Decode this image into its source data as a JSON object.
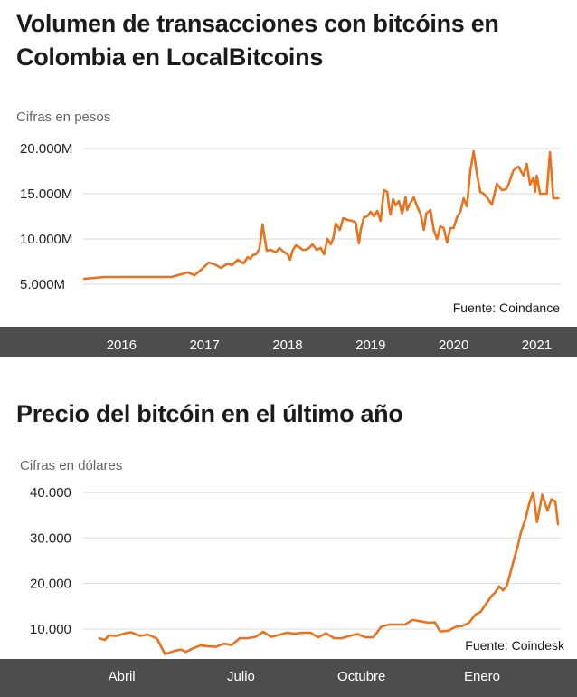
{
  "chart_data": [
    {
      "type": "line",
      "title": "Volumen de transacciones con bitcóins en Colombia en LocalBitcoins",
      "ylabel": "Cifras en pesos",
      "source": "Fuente: Coindance",
      "ylim": [
        5000,
        20000
      ],
      "xlim": [
        2015.55,
        2021.3
      ],
      "yticks": [
        {
          "value": 20000,
          "label": "20.000M"
        },
        {
          "value": 15000,
          "label": "15.000M"
        },
        {
          "value": 10000,
          "label": "10.000M"
        },
        {
          "value": 5000,
          "label": "5.000M"
        }
      ],
      "xticks": [
        {
          "value": 2016.0,
          "label": "2016"
        },
        {
          "value": 2017.0,
          "label": "2017"
        },
        {
          "value": 2018.0,
          "label": "2018"
        },
        {
          "value": 2019.0,
          "label": "2019"
        },
        {
          "value": 2020.0,
          "label": "2020"
        },
        {
          "value": 2021.0,
          "label": "2021"
        }
      ],
      "line_color": "#e8731e",
      "grid": true,
      "series": [
        {
          "values_in": "millones de pesos",
          "x": [
            2015.55,
            2015.8,
            2016.2,
            2016.6,
            2016.8,
            2016.88,
            2016.96,
            2017.05,
            2017.12,
            2017.2,
            2017.28,
            2017.33,
            2017.4,
            2017.47,
            2017.52,
            2017.55,
            2017.58,
            2017.62,
            2017.66,
            2017.7,
            2017.72,
            2017.75,
            2017.8,
            2017.86,
            2017.9,
            2017.95,
            2018.0,
            2018.03,
            2018.06,
            2018.1,
            2018.14,
            2018.18,
            2018.22,
            2018.26,
            2018.3,
            2018.35,
            2018.4,
            2018.44,
            2018.48,
            2018.52,
            2018.55,
            2018.58,
            2018.63,
            2018.67,
            2018.72,
            2018.78,
            2018.82,
            2018.86,
            2018.88,
            2018.92,
            2018.96,
            2019.0,
            2019.04,
            2019.08,
            2019.12,
            2019.16,
            2019.2,
            2019.22,
            2019.24,
            2019.27,
            2019.3,
            2019.34,
            2019.38,
            2019.42,
            2019.44,
            2019.48,
            2019.52,
            2019.56,
            2019.6,
            2019.64,
            2019.67,
            2019.72,
            2019.76,
            2019.8,
            2019.84,
            2019.88,
            2019.92,
            2019.96,
            2020.0,
            2020.04,
            2020.08,
            2020.12,
            2020.16,
            2020.2,
            2020.24,
            2020.28,
            2020.32,
            2020.36,
            2020.4,
            2020.46,
            2020.52,
            2020.58,
            2020.63,
            2020.66,
            2020.72,
            2020.78,
            2020.84,
            2020.88,
            2020.92,
            2020.96,
            2020.98,
            2021.0,
            2021.04,
            2021.08,
            2021.12,
            2021.16,
            2021.2,
            2021.23,
            2021.26
          ],
          "y": [
            5600,
            5800,
            5800,
            5800,
            6300,
            6000,
            6600,
            7400,
            7200,
            6800,
            7300,
            7100,
            7700,
            7300,
            8000,
            7800,
            8200,
            8300,
            8900,
            11600,
            10300,
            8700,
            8800,
            8500,
            9000,
            8600,
            8300,
            7700,
            8700,
            9300,
            9100,
            8800,
            8800,
            9000,
            9400,
            8800,
            9000,
            8300,
            10000,
            9400,
            10100,
            11700,
            11000,
            12300,
            12100,
            12000,
            11800,
            9500,
            11000,
            12400,
            12500,
            13000,
            12500,
            13100,
            12000,
            15400,
            15200,
            13600,
            12700,
            14400,
            13700,
            14200,
            12800,
            14600,
            13200,
            14000,
            14600,
            13600,
            12800,
            11000,
            12800,
            13200,
            11000,
            10000,
            11400,
            11200,
            9600,
            11200,
            11200,
            12400,
            13000,
            14500,
            13600,
            17500,
            19700,
            17200,
            15200,
            15000,
            14600,
            13800,
            16100,
            15400,
            15500,
            16000,
            17600,
            18000,
            17000,
            18300,
            16000,
            16800,
            15200,
            17000,
            15000,
            15000,
            15000,
            19600,
            14500,
            14500,
            14500
          ]
        }
      ]
    },
    {
      "type": "line",
      "title": "Precio del bitcóin en el último año",
      "ylabel": "Cifras en dólares",
      "source": "Fuente: Coindesk",
      "ylim": [
        10000,
        40000
      ],
      "xlim": [
        "2020-03-15",
        "2021-02-28"
      ],
      "yticks": [
        {
          "value": 40000,
          "label": "40.000"
        },
        {
          "value": 30000,
          "label": "30.000"
        },
        {
          "value": 20000,
          "label": "20.000"
        },
        {
          "value": 10000,
          "label": "10.000"
        }
      ],
      "xticks": [
        {
          "value": "2020-04-01",
          "label": "Abril"
        },
        {
          "value": "2020-07-01",
          "label": "Julio"
        },
        {
          "value": "2020-10-01",
          "label": "Octubre"
        },
        {
          "value": "2021-01-01",
          "label": "Enero"
        }
      ],
      "line_color": "#e8731e",
      "grid": true,
      "series": [
        {
          "x": [
            "2020-03-15",
            "2020-03-19",
            "2020-03-22",
            "2020-03-28",
            "2020-04-04",
            "2020-04-08",
            "2020-04-15",
            "2020-04-21",
            "2020-04-28",
            "2020-05-04",
            "2020-05-11",
            "2020-05-16",
            "2020-05-20",
            "2020-05-25",
            "2020-05-31",
            "2020-06-06",
            "2020-06-12",
            "2020-06-18",
            "2020-06-24",
            "2020-06-30",
            "2020-07-06",
            "2020-07-12",
            "2020-07-18",
            "2020-07-24",
            "2020-07-30",
            "2020-08-05",
            "2020-08-11",
            "2020-08-17",
            "2020-08-23",
            "2020-08-29",
            "2020-09-04",
            "2020-09-10",
            "2020-09-16",
            "2020-09-22",
            "2020-09-28",
            "2020-10-04",
            "2020-10-10",
            "2020-10-16",
            "2020-10-22",
            "2020-10-28",
            "2020-11-03",
            "2020-11-09",
            "2020-11-15",
            "2020-11-21",
            "2020-11-26",
            "2020-11-30",
            "2020-12-06",
            "2020-12-12",
            "2020-12-17",
            "2020-12-22",
            "2020-12-27",
            "2020-12-31",
            "2021-01-03",
            "2021-01-06",
            "2021-01-08",
            "2021-01-11",
            "2021-01-14",
            "2021-01-17",
            "2021-01-20",
            "2021-01-24",
            "2021-01-28",
            "2021-01-31",
            "2021-02-03",
            "2021-02-06",
            "2021-02-09",
            "2021-02-12",
            "2021-02-16",
            "2021-02-20",
            "2021-02-23",
            "2021-02-26",
            "2021-02-28"
          ],
          "y": [
            8000,
            7600,
            8600,
            8500,
            9100,
            9300,
            8500,
            8800,
            7900,
            4500,
            5200,
            5500,
            5000,
            5700,
            6400,
            6200,
            6100,
            6800,
            6500,
            8000,
            8000,
            8300,
            9400,
            8300,
            8700,
            9200,
            9000,
            9200,
            9200,
            8200,
            9100,
            8000,
            8000,
            8500,
            8900,
            8200,
            8200,
            10500,
            11000,
            11000,
            11000,
            12000,
            11700,
            11400,
            11500,
            9500,
            9600,
            10500,
            10700,
            11400,
            13200,
            13800,
            15100,
            16300,
            17200,
            18000,
            19400,
            18500,
            19500,
            23800,
            28000,
            31500,
            34000,
            37500,
            40000,
            33500,
            39500,
            36000,
            38500,
            38000,
            33000
          ]
        }
      ]
    }
  ]
}
